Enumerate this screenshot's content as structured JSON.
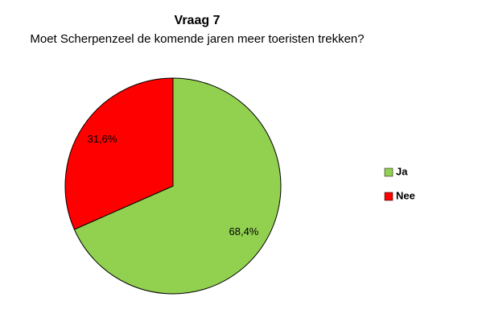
{
  "chart_data": {
    "type": "pie",
    "title": "Vraag 7",
    "subtitle": "Moet Scherpenzeel de komende jaren meer toeristen trekken?",
    "categories": [
      "Ja",
      "Nee"
    ],
    "values": [
      68.4,
      31.6
    ],
    "value_labels": [
      "68,4%",
      "31,6%"
    ],
    "colors": [
      "#92d050",
      "#ff0000"
    ],
    "legend": "right"
  }
}
